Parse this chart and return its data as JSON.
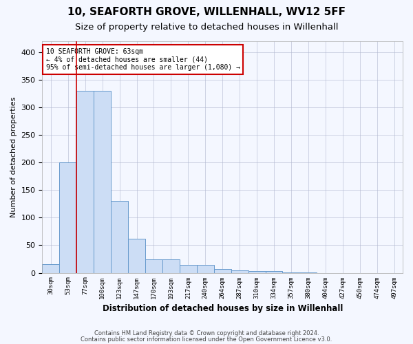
{
  "title1": "10, SEAFORTH GROVE, WILLENHALL, WV12 5FF",
  "title2": "Size of property relative to detached houses in Willenhall",
  "xlabel": "Distribution of detached houses by size in Willenhall",
  "ylabel": "Number of detached properties",
  "categories": [
    "30sqm",
    "53sqm",
    "77sqm",
    "100sqm",
    "123sqm",
    "147sqm",
    "170sqm",
    "193sqm",
    "217sqm",
    "240sqm",
    "264sqm",
    "287sqm",
    "310sqm",
    "334sqm",
    "357sqm",
    "380sqm",
    "404sqm",
    "427sqm",
    "450sqm",
    "474sqm",
    "497sqm"
  ],
  "values": [
    16,
    200,
    330,
    330,
    130,
    62,
    25,
    25,
    14,
    14,
    7,
    5,
    3,
    3,
    1,
    1,
    0,
    0,
    0,
    0,
    0
  ],
  "bar_color": "#ccddf5",
  "bar_edgecolor": "#6699cc",
  "annotation_title": "10 SEAFORTH GROVE: 63sqm",
  "annotation_line1": "← 4% of detached houses are smaller (44)",
  "annotation_line2": "95% of semi-detached houses are larger (1,080) →",
  "annotation_box_color": "#ffffff",
  "annotation_box_edgecolor": "#cc0000",
  "vline_color": "#cc0000",
  "ylim": [
    0,
    420
  ],
  "yticks": [
    0,
    50,
    100,
    150,
    200,
    250,
    300,
    350,
    400
  ],
  "footer1": "Contains HM Land Registry data © Crown copyright and database right 2024.",
  "footer2": "Contains public sector information licensed under the Open Government Licence v3.0.",
  "bg_color": "#f4f7ff",
  "title1_fontsize": 11,
  "title2_fontsize": 9.5
}
